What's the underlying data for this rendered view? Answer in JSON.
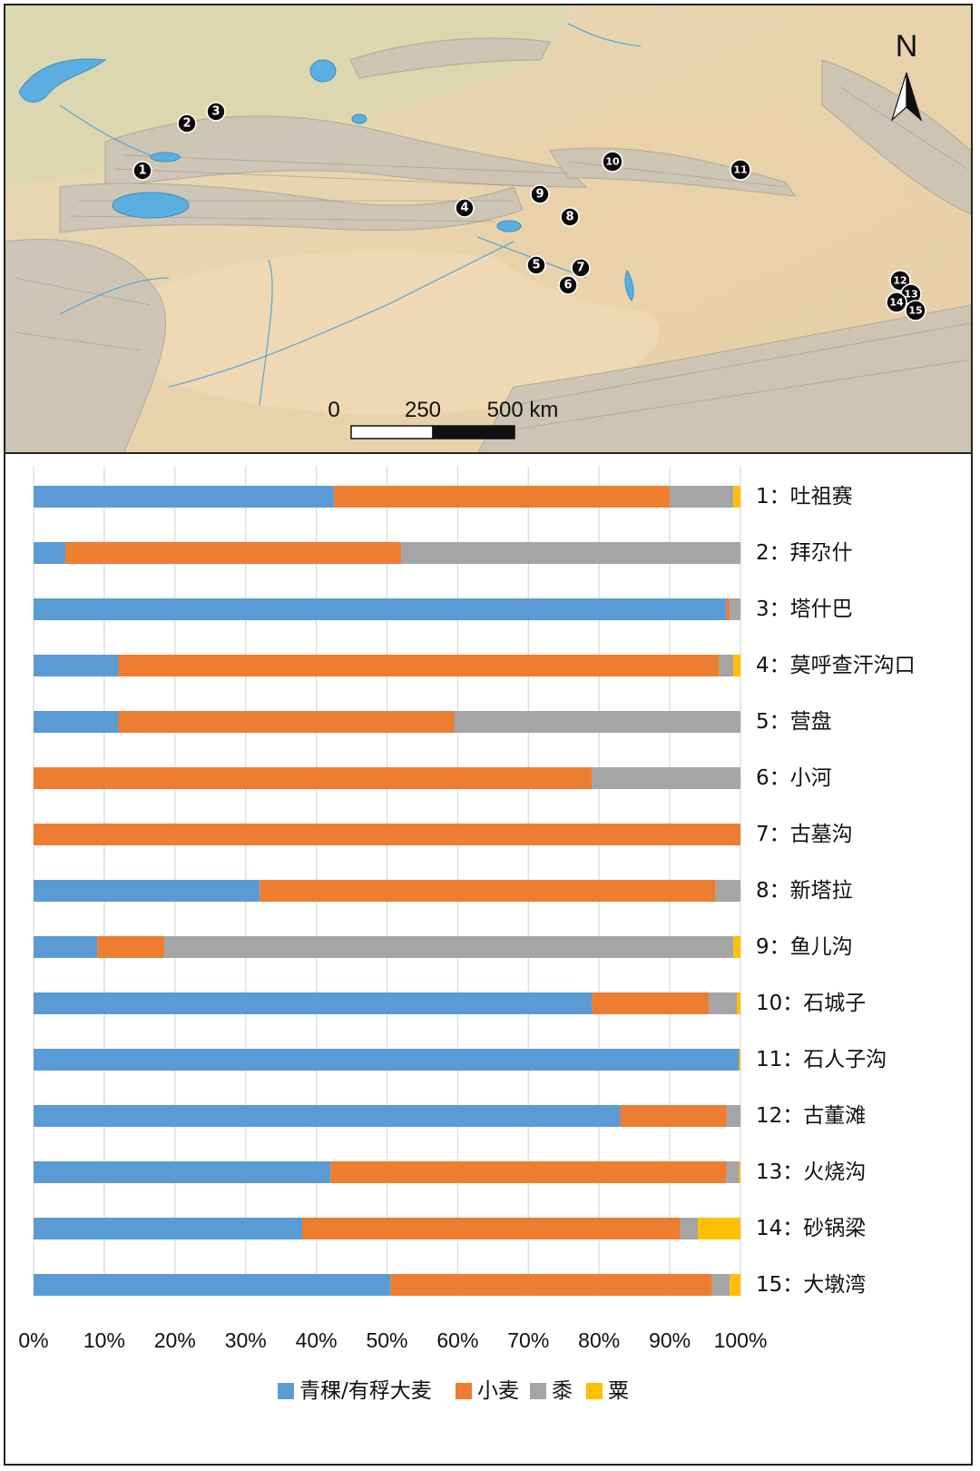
{
  "map": {
    "north_label": "N",
    "scale_labels": [
      "0",
      "250",
      "500 km"
    ],
    "site_numbers": [
      "1",
      "2",
      "3",
      "4",
      "5",
      "6",
      "7",
      "8",
      "9",
      "10",
      "11",
      "12",
      "13",
      "14",
      "15"
    ]
  },
  "chart_data": {
    "type": "bar",
    "orientation": "horizontal",
    "stacked": true,
    "categories": [
      "1：吐祖赛",
      "2：拜尕什",
      "3：塔什巴",
      "4：莫呼查汗沟口",
      "5：营盘",
      "6：小河",
      "7：古墓沟",
      "8：新塔拉",
      "9：鱼儿沟",
      "10：石城子",
      "11：石人子沟",
      "12：古董滩",
      "13：火烧沟",
      "14：砂锅梁",
      "15：大墩湾"
    ],
    "series": [
      {
        "name": "青稞/有稃大麦",
        "color": "#5b9bd5",
        "values": [
          42.5,
          4.5,
          98,
          12,
          12,
          0,
          0,
          32,
          9,
          79,
          99.8,
          83,
          42,
          38,
          50.5
        ]
      },
      {
        "name": "小麦",
        "color": "#ed7d31",
        "values": [
          47.5,
          47.5,
          0.5,
          85,
          47.5,
          79,
          100,
          64.5,
          9.5,
          16.5,
          0,
          15,
          56,
          53.5,
          45.5
        ]
      },
      {
        "name": "黍",
        "color": "#a5a5a5",
        "values": [
          9,
          48,
          1.5,
          2,
          40.5,
          21,
          0,
          3.5,
          80.5,
          4,
          0,
          2,
          1.8,
          2.5,
          2.5
        ]
      },
      {
        "name": "粟",
        "color": "#ffc000",
        "values": [
          1,
          0,
          0,
          1,
          0,
          0,
          0,
          0,
          1,
          0.5,
          0.2,
          0,
          0.2,
          6,
          1.5
        ]
      }
    ],
    "xlim": [
      0,
      100
    ],
    "xticks": [
      "0%",
      "10%",
      "20%",
      "30%",
      "40%",
      "50%",
      "60%",
      "70%",
      "80%",
      "90%",
      "100%"
    ],
    "grid": true,
    "legend_position": "bottom"
  }
}
